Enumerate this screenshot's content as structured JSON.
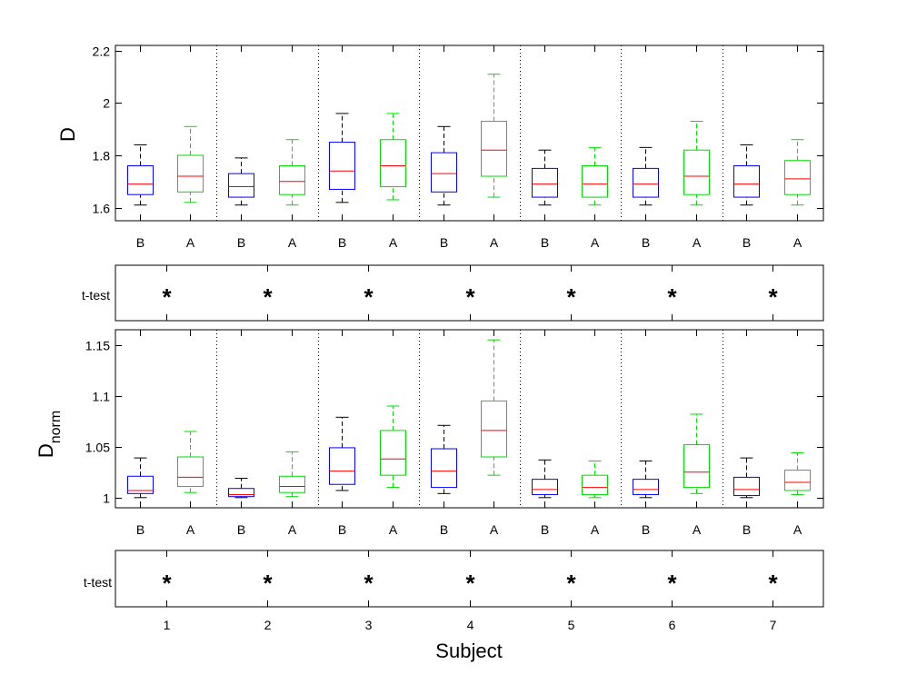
{
  "figure": {
    "xlabel": "Subject",
    "subject_ticks": [
      "1",
      "2",
      "3",
      "4",
      "5",
      "6",
      "7"
    ],
    "group_ticks": [
      "B",
      "A",
      "B",
      "A",
      "B",
      "A",
      "B",
      "A",
      "B",
      "A",
      "B",
      "A",
      "B",
      "A"
    ],
    "ttest_label": "t-test",
    "ttest_marker": "*"
  },
  "colors": {
    "before": "#0000ff",
    "after": "#00dd00",
    "median": "#ff0000",
    "whisker_before": "#000000"
  },
  "chart_data": [
    {
      "type": "box",
      "name": "D",
      "ylabel": "D",
      "ylim": [
        1.55,
        2.22
      ],
      "yticks": [
        1.6,
        1.8,
        2.0,
        2.2
      ],
      "ytick_labels": [
        "1.6",
        "1.8",
        "2",
        "2.2"
      ],
      "categories": [
        "1",
        "2",
        "3",
        "4",
        "5",
        "6",
        "7"
      ],
      "series": [
        {
          "name": "B",
          "boxes": [
            {
              "min": 1.61,
              "q1": 1.65,
              "median": 1.69,
              "q3": 1.76,
              "max": 1.84
            },
            {
              "min": 1.61,
              "q1": 1.64,
              "median": 1.68,
              "q3": 1.73,
              "max": 1.79
            },
            {
              "min": 1.62,
              "q1": 1.67,
              "median": 1.74,
              "q3": 1.85,
              "max": 1.96
            },
            {
              "min": 1.61,
              "q1": 1.66,
              "median": 1.73,
              "q3": 1.81,
              "max": 1.91
            },
            {
              "min": 1.61,
              "q1": 1.64,
              "median": 1.69,
              "q3": 1.75,
              "max": 1.82
            },
            {
              "min": 1.61,
              "q1": 1.64,
              "median": 1.69,
              "q3": 1.75,
              "max": 1.83
            },
            {
              "min": 1.61,
              "q1": 1.64,
              "median": 1.69,
              "q3": 1.76,
              "max": 1.84
            }
          ]
        },
        {
          "name": "A",
          "boxes": [
            {
              "min": 1.62,
              "q1": 1.66,
              "median": 1.72,
              "q3": 1.8,
              "max": 1.91
            },
            {
              "min": 1.61,
              "q1": 1.65,
              "median": 1.7,
              "q3": 1.76,
              "max": 1.86
            },
            {
              "min": 1.63,
              "q1": 1.68,
              "median": 1.76,
              "q3": 1.86,
              "max": 1.96
            },
            {
              "min": 1.64,
              "q1": 1.72,
              "median": 1.82,
              "q3": 1.93,
              "max": 2.11
            },
            {
              "min": 1.61,
              "q1": 1.64,
              "median": 1.69,
              "q3": 1.76,
              "max": 1.83
            },
            {
              "min": 1.61,
              "q1": 1.65,
              "median": 1.72,
              "q3": 1.82,
              "max": 1.93
            },
            {
              "min": 1.61,
              "q1": 1.65,
              "median": 1.71,
              "q3": 1.78,
              "max": 1.86
            }
          ]
        }
      ],
      "ttest_significant": [
        true,
        true,
        true,
        true,
        true,
        true,
        true
      ]
    },
    {
      "type": "box",
      "name": "Dnorm",
      "ylabel_main": "D",
      "ylabel_sub": "norm",
      "ylim": [
        0.99,
        1.165
      ],
      "yticks": [
        1.0,
        1.05,
        1.1,
        1.15
      ],
      "ytick_labels": [
        "1",
        "1.05",
        "1.1",
        "1.15"
      ],
      "categories": [
        "1",
        "2",
        "3",
        "4",
        "5",
        "6",
        "7"
      ],
      "series": [
        {
          "name": "B",
          "boxes": [
            {
              "min": 1.0,
              "q1": 1.004,
              "median": 1.007,
              "q3": 1.021,
              "max": 1.039
            },
            {
              "min": 1.0,
              "q1": 1.001,
              "median": 1.003,
              "q3": 1.009,
              "max": 1.019
            },
            {
              "min": 1.007,
              "q1": 1.013,
              "median": 1.026,
              "q3": 1.049,
              "max": 1.079
            },
            {
              "min": 1.004,
              "q1": 1.01,
              "median": 1.026,
              "q3": 1.048,
              "max": 1.071
            },
            {
              "min": 1.0,
              "q1": 1.003,
              "median": 1.008,
              "q3": 1.018,
              "max": 1.037
            },
            {
              "min": 1.0,
              "q1": 1.003,
              "median": 1.008,
              "q3": 1.018,
              "max": 1.036
            },
            {
              "min": 1.0,
              "q1": 1.002,
              "median": 1.008,
              "q3": 1.02,
              "max": 1.039
            }
          ]
        },
        {
          "name": "A",
          "boxes": [
            {
              "min": 1.005,
              "q1": 1.011,
              "median": 1.02,
              "q3": 1.04,
              "max": 1.065
            },
            {
              "min": 1.001,
              "q1": 1.005,
              "median": 1.011,
              "q3": 1.021,
              "max": 1.045
            },
            {
              "min": 1.01,
              "q1": 1.022,
              "median": 1.038,
              "q3": 1.066,
              "max": 1.09
            },
            {
              "min": 1.022,
              "q1": 1.04,
              "median": 1.066,
              "q3": 1.095,
              "max": 1.155
            },
            {
              "min": 1.0,
              "q1": 1.003,
              "median": 1.01,
              "q3": 1.022,
              "max": 1.036
            },
            {
              "min": 1.004,
              "q1": 1.01,
              "median": 1.025,
              "q3": 1.052,
              "max": 1.082
            },
            {
              "min": 1.003,
              "q1": 1.007,
              "median": 1.015,
              "q3": 1.027,
              "max": 1.044
            }
          ]
        }
      ],
      "ttest_significant": [
        true,
        true,
        true,
        true,
        true,
        true,
        true
      ]
    }
  ]
}
